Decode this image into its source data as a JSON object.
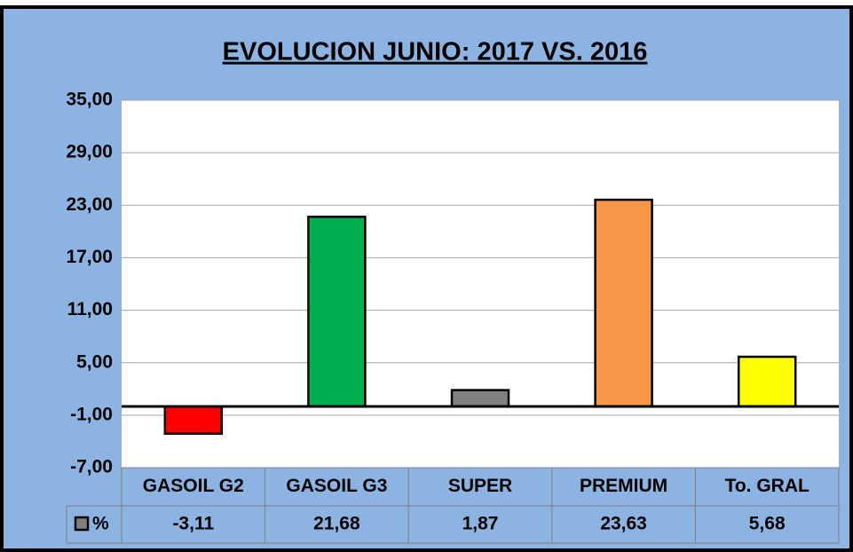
{
  "chart_data": {
    "type": "bar",
    "title": "EVOLUCION JUNIO: 2017 VS. 2016",
    "categories": [
      "GASOIL G2",
      "GASOIL G3",
      "SUPER",
      "PREMIUM",
      "To. GRAL"
    ],
    "series": [
      {
        "name": "%",
        "color": "#808080",
        "colors": [
          "#ff0000",
          "#00b050",
          "#808080",
          "#f79646",
          "#ffff00"
        ],
        "values": [
          -3.11,
          21.68,
          1.87,
          23.63,
          5.68
        ],
        "value_labels": [
          "-3,11",
          "21,68",
          "1,87",
          "23,63",
          "5,68"
        ]
      }
    ],
    "ylim": [
      -7,
      35
    ],
    "yticks": [
      {
        "value": -7,
        "label": "-7,00"
      },
      {
        "value": -1,
        "label": "-1,00"
      },
      {
        "value": 5,
        "label": "5,00"
      },
      {
        "value": 11,
        "label": "11,00"
      },
      {
        "value": 17,
        "label": "17,00"
      },
      {
        "value": 23,
        "label": "23,00"
      },
      {
        "value": 29,
        "label": "29,00"
      },
      {
        "value": 35,
        "label": "35,00"
      }
    ],
    "grid": true
  }
}
